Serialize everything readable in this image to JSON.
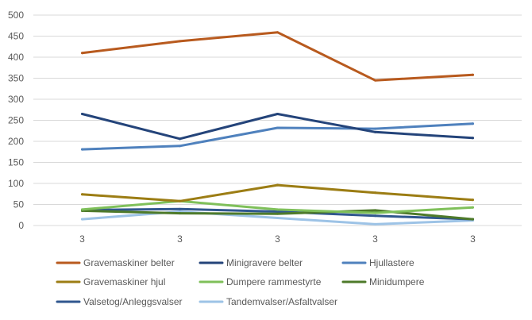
{
  "chart_data": {
    "type": "line",
    "title": "",
    "xlabel": "",
    "ylabel": "",
    "categories": [
      "3",
      "3",
      "3",
      "3",
      "3"
    ],
    "ylim": [
      0,
      500
    ],
    "yticks": [
      0,
      50,
      100,
      150,
      200,
      250,
      300,
      350,
      400,
      450,
      500
    ],
    "grid": true,
    "legend_position": "bottom",
    "series": [
      {
        "name": "Gravemaskiner belter",
        "color": "#b85a1e",
        "values": [
          410,
          438,
          459,
          345,
          358
        ]
      },
      {
        "name": "Minigravere belter",
        "color": "#24447a",
        "values": [
          265,
          206,
          265,
          222,
          208
        ]
      },
      {
        "name": "Hjullastere",
        "color": "#4f81bd",
        "values": [
          181,
          189,
          232,
          230,
          242
        ]
      },
      {
        "name": "Gravemaskiner hjul",
        "color": "#9c7d14",
        "values": [
          74,
          58,
          96,
          78,
          61
        ]
      },
      {
        "name": "Dumpere rammestyrte",
        "color": "#7fc05a",
        "values": [
          38,
          58,
          38,
          30,
          43
        ]
      },
      {
        "name": "Minidumpere",
        "color": "#4e7a2a",
        "values": [
          35,
          29,
          28,
          36,
          15
        ]
      },
      {
        "name": "Valsetog/Anleggsvalser",
        "color": "#30578f",
        "values": [
          37,
          39,
          33,
          23,
          15
        ]
      },
      {
        "name": "Tandemvalser/Asfaltvalser",
        "color": "#9dc3e6",
        "values": [
          15,
          33,
          18,
          3,
          12
        ]
      }
    ]
  }
}
